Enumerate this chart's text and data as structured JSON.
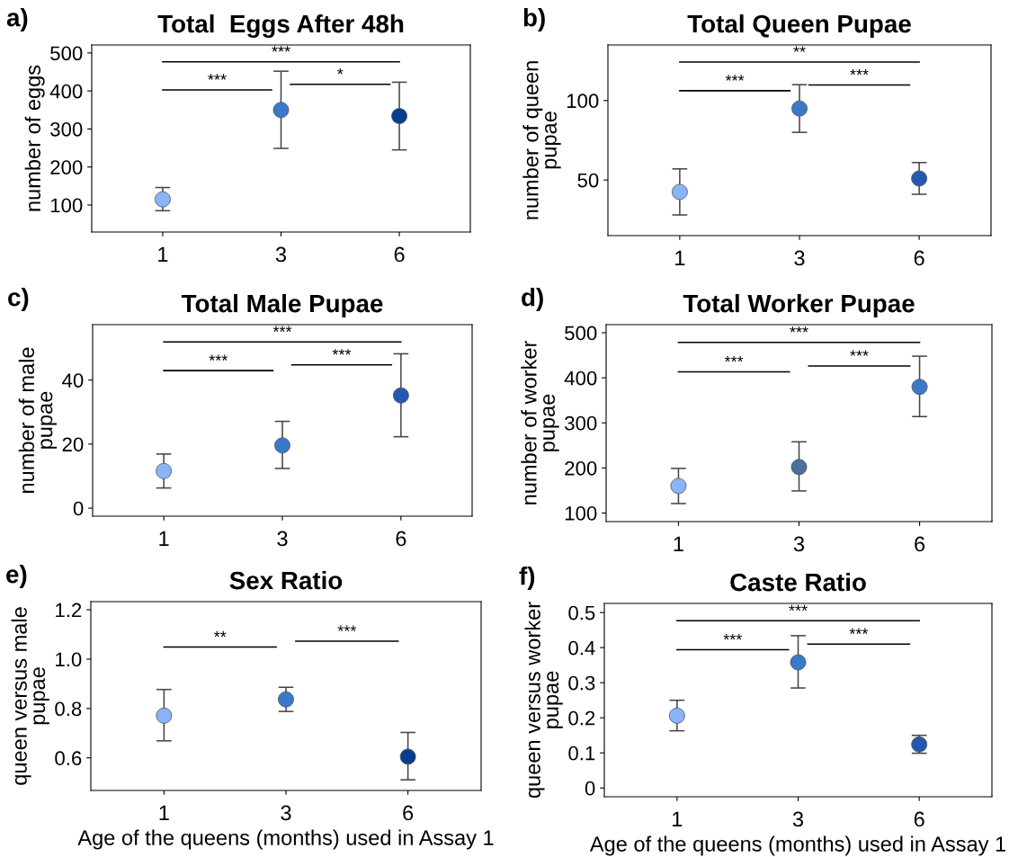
{
  "chart_data": [
    {
      "type": "scatter",
      "title": "Total  Eggs After 48h",
      "ylabel": "number of eggs",
      "categories": [
        "1",
        "3",
        "6"
      ],
      "ylim": [
        29,
        521
      ],
      "yticks": [
        100,
        200,
        300,
        400,
        500
      ],
      "grid": false,
      "marker": "circle",
      "tick_labels": "xy",
      "series": [
        {
          "colors": [
            "#8ab4f8",
            "#3a78c9",
            "#0a3d8f"
          ],
          "values": [
            115,
            350,
            334
          ],
          "errors": [
            [
              85,
              146
            ],
            [
              249,
              452
            ],
            [
              245,
              423
            ]
          ]
        }
      ],
      "annotations": [
        "a)",
        "***",
        "*",
        "***"
      ]
    },
    {
      "type": "scatter",
      "title": "Total Queen Pupae",
      "ylabel": "number of queen\npupae",
      "categories": [
        "1",
        "3",
        "6"
      ],
      "ylim": [
        15,
        135
      ],
      "yticks": [
        50,
        100
      ],
      "grid": false,
      "marker": "circle",
      "series": [
        {
          "colors": [
            "#8ab4f8",
            "#3a78c9",
            "#2558b0"
          ],
          "values": [
            42.5,
            95,
            51
          ],
          "errors": [
            [
              28,
              57
            ],
            [
              80,
              110
            ],
            [
              41,
              61
            ]
          ]
        }
      ],
      "annotations": [
        "b)",
        "***",
        "***",
        "**"
      ]
    },
    {
      "type": "scatter",
      "title": "Total Male Pupae",
      "ylabel": "number of male\npupae",
      "categories": [
        "1",
        "3",
        "6"
      ],
      "ylim": [
        -2.5,
        57.3
      ],
      "yticks": [
        0,
        20,
        40
      ],
      "grid": false,
      "marker": "circle",
      "series": [
        {
          "colors": [
            "#8ab4f8",
            "#3a78c9",
            "#2558b0"
          ],
          "values": [
            11.6,
            19.6,
            35.2
          ],
          "errors": [
            [
              6.3,
              16.9
            ],
            [
              12.4,
              27.1
            ],
            [
              22.3,
              48.2
            ]
          ]
        }
      ],
      "annotations": [
        "c)",
        "***",
        "***",
        "***"
      ]
    },
    {
      "type": "scatter",
      "title": "Total Worker Pupae",
      "ylabel": "number of worker\npupae",
      "categories": [
        "1",
        "3",
        "6"
      ],
      "ylim": [
        81,
        518
      ],
      "yticks": [
        100,
        200,
        300,
        400,
        500
      ],
      "grid": false,
      "marker": "circle",
      "series": [
        {
          "colors": [
            "#8ab4f8",
            "#4a70a0",
            "#3a78c9"
          ],
          "values": [
            160,
            202,
            380
          ],
          "errors": [
            [
              121,
              199
            ],
            [
              149,
              258
            ],
            [
              314,
              448
            ]
          ]
        }
      ],
      "annotations": [
        "d)",
        "***",
        "***",
        "***"
      ]
    },
    {
      "type": "scatter",
      "title": "Sex Ratio",
      "ylabel": "queen versus male\npupae",
      "xlabel": "Age of the queens (months) used in Assay 1",
      "categories": [
        "1",
        "3",
        "6"
      ],
      "ylim": [
        0.468,
        1.233
      ],
      "yticks": [
        0.6,
        0.8,
        {
          "value": 1.0,
          "label": "1.0"
        },
        1.2
      ],
      "grid": false,
      "marker": "circle",
      "series": [
        {
          "colors": [
            "#8ab4f8",
            "#3a78c9",
            "#0a3d8f"
          ],
          "values": [
            0.771,
            0.837,
            0.605
          ],
          "errors": [
            [
              0.669,
              0.877
            ],
            [
              0.788,
              0.886
            ],
            [
              0.511,
              0.703
            ]
          ]
        }
      ],
      "annotations": [
        "e)",
        "**",
        "***"
      ]
    },
    {
      "type": "scatter",
      "title": "Caste Ratio",
      "ylabel": "queen versus worker\npupae",
      "xlabel": "Age of the queens (months) used in Assay 1",
      "categories": [
        "1",
        "3",
        "6"
      ],
      "ylim": [
        -0.025,
        0.526
      ],
      "yticks": [
        0,
        0.1,
        0.2,
        0.3,
        0.4,
        0.5
      ],
      "grid": false,
      "marker": "circle",
      "series": [
        {
          "colors": [
            "#8ab4f8",
            "#3a78c9",
            "#2558b0"
          ],
          "values": [
            0.206,
            0.358,
            0.124
          ],
          "errors": [
            [
              0.163,
              0.25
            ],
            [
              0.285,
              0.434
            ],
            [
              0.099,
              0.15
            ]
          ]
        }
      ],
      "annotations": [
        "f)",
        "***",
        "***",
        "***"
      ]
    }
  ]
}
